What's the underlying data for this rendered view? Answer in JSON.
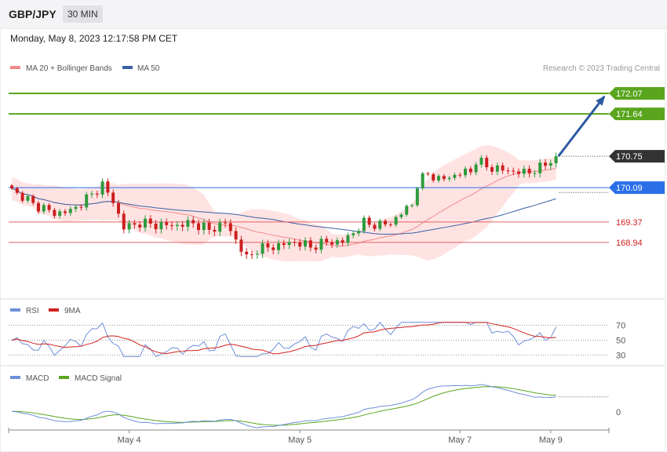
{
  "header": {
    "symbol": "GBP/JPY",
    "timeframe": "30 MIN",
    "datetime": "Monday, May 8, 2023 12:17:58 PM CET",
    "credit": "Research © 2023 Trading Central"
  },
  "colors": {
    "up_candle": "#2e9a3c",
    "down_candle": "#cc1f1f",
    "ma20": "#f08a8a",
    "ma50": "#3a5fa8",
    "bollinger_fill": "#ffd9d9",
    "resistance": "#5aa51e",
    "support": "#e06060",
    "pivot": "#2a6ee8",
    "current": "#333333",
    "rsi": "#6e8fd9",
    "rsi_ma": "#d42020",
    "macd": "#6e8fd9",
    "macd_signal": "#5aa51e",
    "forecast_arrow": "#2c5aa0"
  },
  "chart_data": [
    {
      "type": "candlestick",
      "name": "price",
      "legend": [
        "MA 20 + Bollinger Bands",
        "MA 50"
      ],
      "ylim": [
        167.9,
        172.45
      ],
      "levels": [
        {
          "value": 172.07,
          "label": "172.07",
          "kind": "resistance"
        },
        {
          "value": 171.64,
          "label": "171.64",
          "kind": "resistance"
        },
        {
          "value": 170.75,
          "label": "170.75",
          "kind": "current"
        },
        {
          "value": 170.09,
          "label": "170.09",
          "kind": "pivot"
        },
        {
          "value": 169.37,
          "label": "169.37",
          "kind": "support"
        },
        {
          "value": 168.94,
          "label": "168.94",
          "kind": "support"
        }
      ],
      "forecast": {
        "from": 170.75,
        "to": 172.07
      },
      "x_ticks": [
        {
          "label": "May 4",
          "index": 22
        },
        {
          "label": "May 5",
          "index": 54
        },
        {
          "label": "May 7",
          "index": 84
        },
        {
          "label": "May 9",
          "index": 101
        }
      ],
      "candles_count": 103,
      "anchors": [
        [
          0,
          170.05
        ],
        [
          4,
          169.75
        ],
        [
          8,
          169.55
        ],
        [
          11,
          169.6
        ],
        [
          14,
          169.85
        ],
        [
          17,
          170.15
        ],
        [
          19,
          169.8
        ],
        [
          21,
          169.25
        ],
        [
          24,
          169.35
        ],
        [
          28,
          169.3
        ],
        [
          31,
          169.3
        ],
        [
          34,
          169.35
        ],
        [
          37,
          169.2
        ],
        [
          40,
          169.35
        ],
        [
          42,
          169.0
        ],
        [
          44,
          168.6
        ],
        [
          46,
          168.8
        ],
        [
          49,
          168.85
        ],
        [
          53,
          168.95
        ],
        [
          56,
          168.85
        ],
        [
          59,
          168.95
        ],
        [
          62,
          168.95
        ],
        [
          64,
          169.15
        ],
        [
          66,
          169.35
        ],
        [
          69,
          169.3
        ],
        [
          71,
          169.35
        ],
        [
          73,
          169.55
        ],
        [
          75,
          169.75
        ],
        [
          76,
          170.15
        ],
        [
          78,
          170.4
        ],
        [
          80,
          170.25
        ],
        [
          83,
          170.35
        ],
        [
          86,
          170.45
        ],
        [
          87,
          170.65
        ],
        [
          90,
          170.5
        ],
        [
          93,
          170.45
        ],
        [
          96,
          170.4
        ],
        [
          99,
          170.5
        ],
        [
          102,
          170.75
        ]
      ]
    },
    {
      "type": "line",
      "name": "RSI",
      "legend": [
        "RSI",
        "9MA"
      ],
      "levels": [
        70,
        50,
        30
      ],
      "ylim": [
        20,
        80
      ]
    },
    {
      "type": "line",
      "name": "MACD",
      "legend": [
        "MACD",
        "MACD Signal"
      ],
      "levels": [
        0
      ]
    }
  ]
}
